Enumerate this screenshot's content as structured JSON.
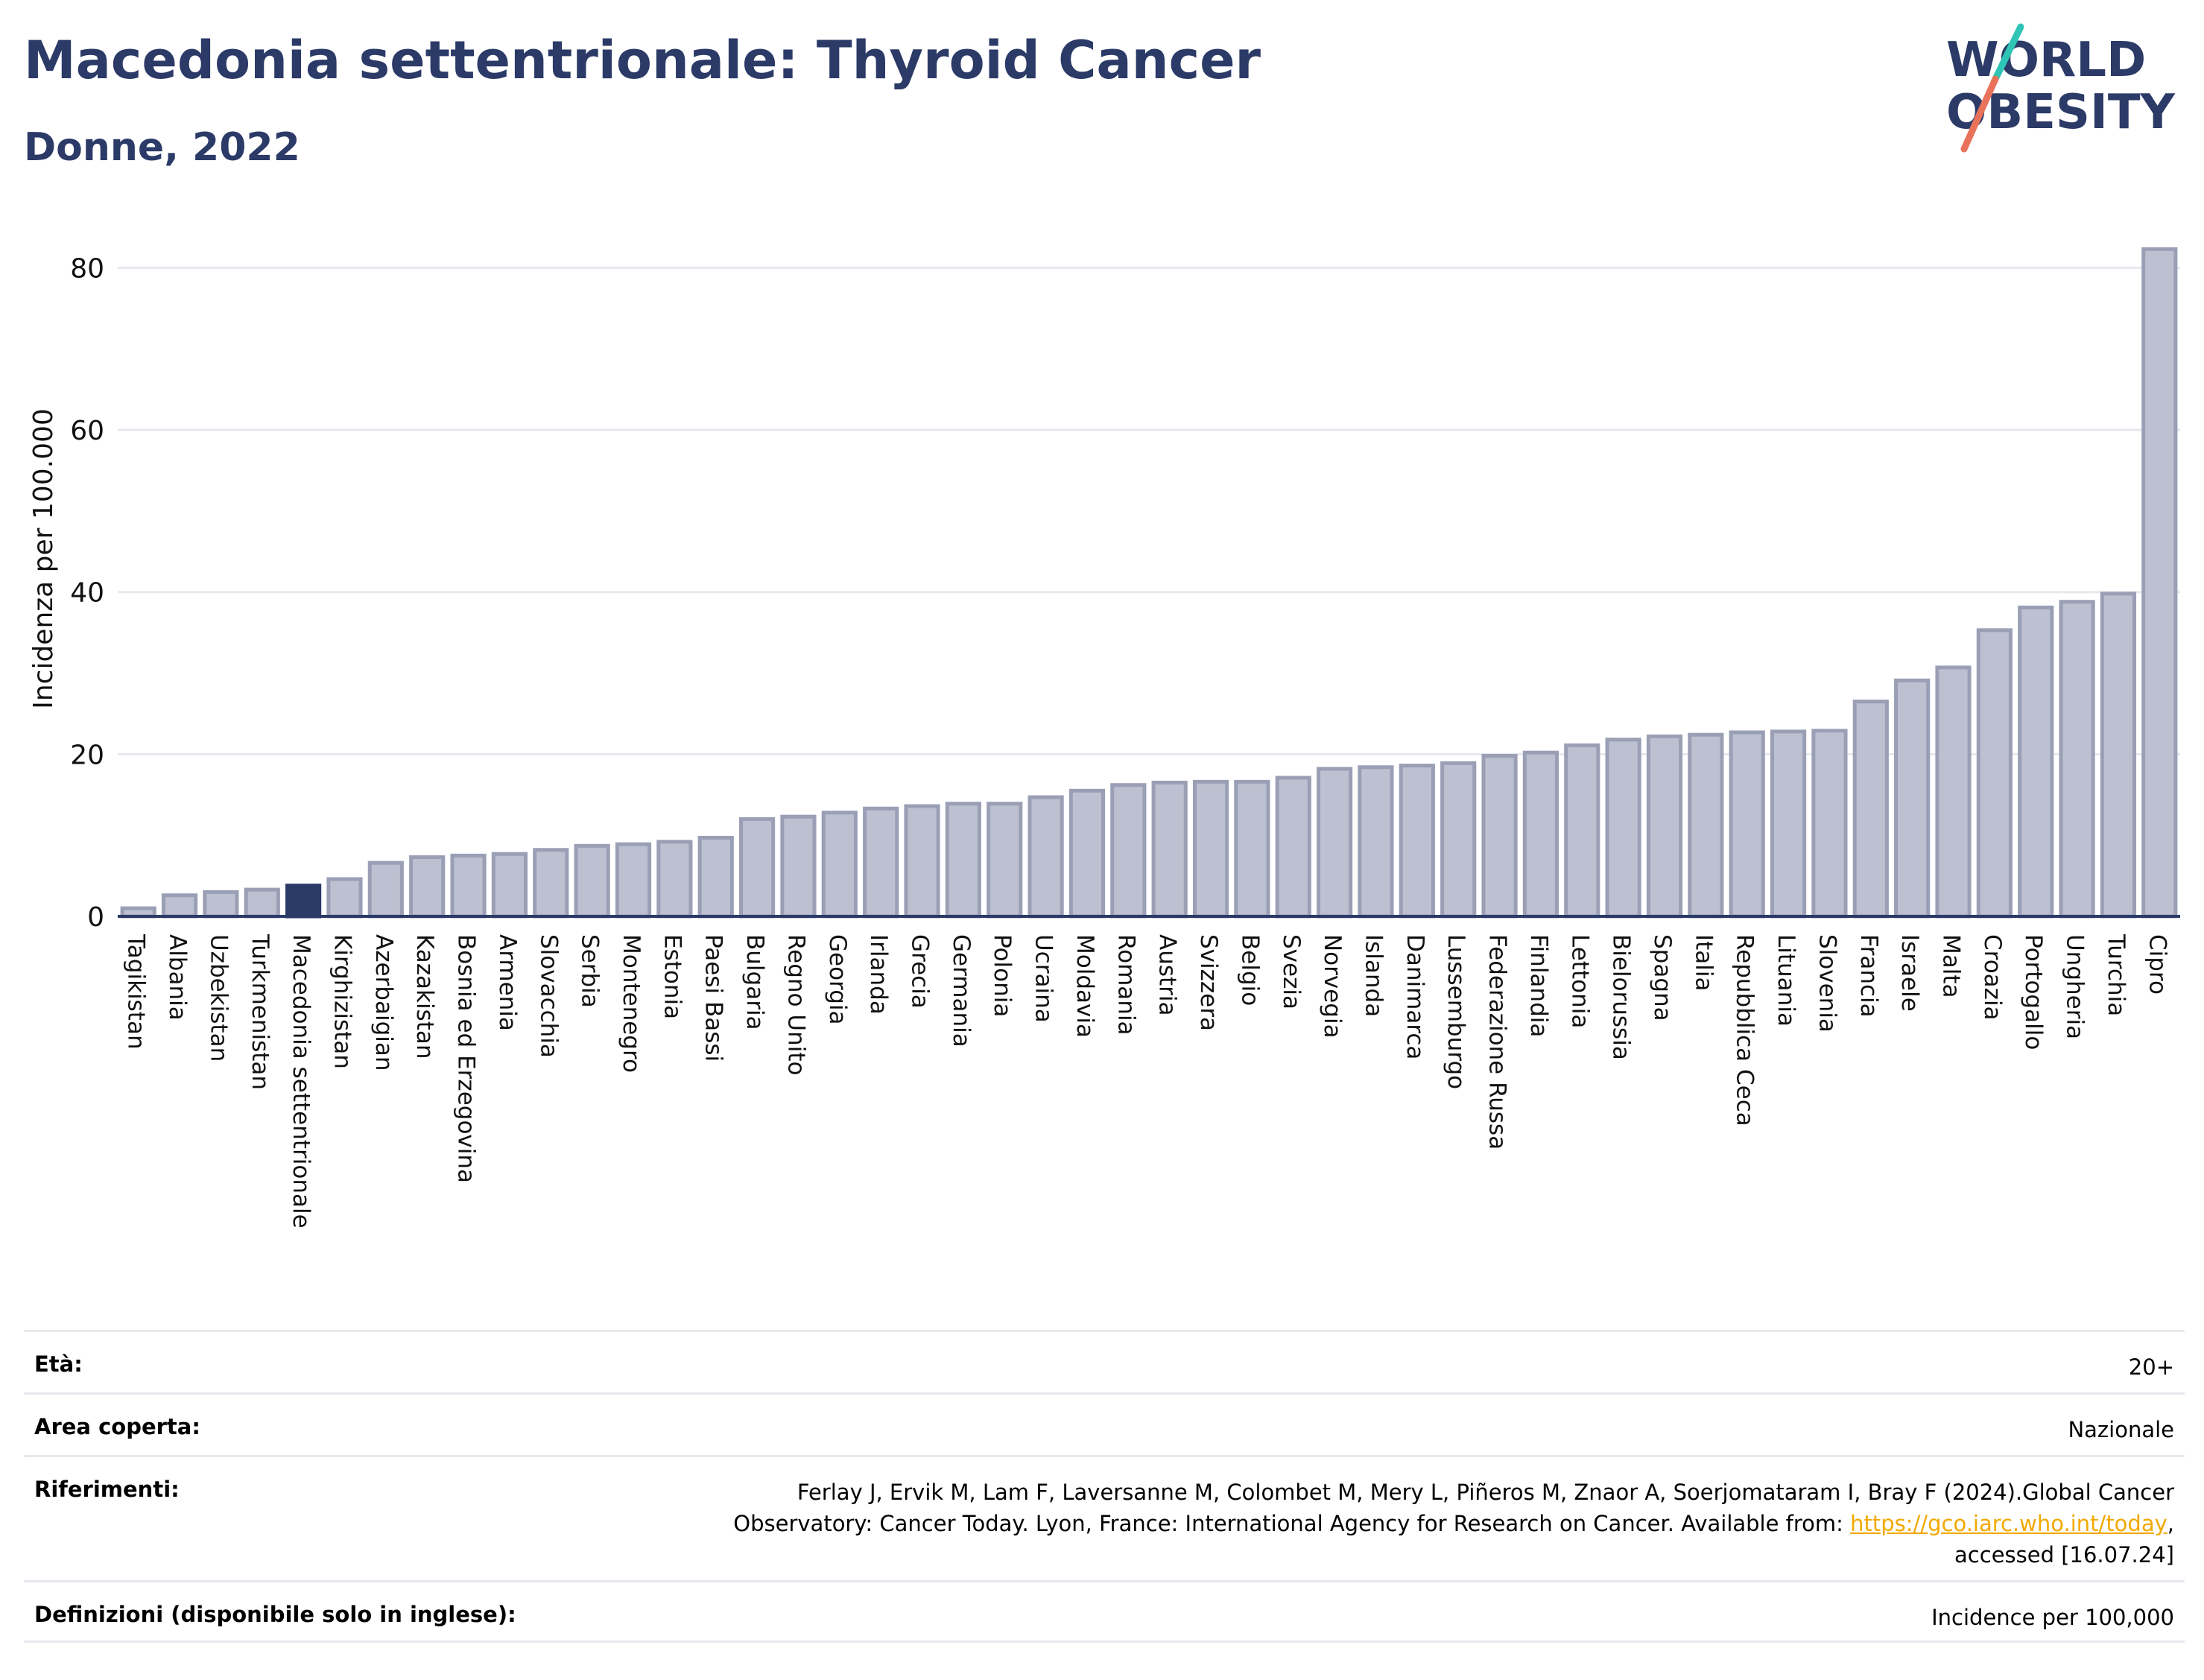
{
  "header": {
    "title": "Macedonia settentrionale: Thyroid Cancer",
    "subtitle": "Donne, 2022"
  },
  "logo": {
    "line1": "WORLD",
    "line2": "OBESITY"
  },
  "chart_data": {
    "type": "bar",
    "ylabel": "Incidenza per 100.000",
    "ylim": [
      0,
      85
    ],
    "yticks": [
      0,
      20,
      40,
      60,
      80
    ],
    "grid": true,
    "highlight": "Macedonia settentrionale",
    "colors": {
      "bar": "#bcc0d0",
      "bar_edge": "#9a9fb6",
      "highlight": "#2b3a67",
      "grid": "#e6e8ee",
      "axis": "#2b3a67"
    },
    "categories": [
      "Tagikistan",
      "Albania",
      "Uzbekistan",
      "Turkmenistan",
      "Macedonia settentrionale",
      "Kirghizistan",
      "Azerbaigian",
      "Kazakistan",
      "Bosnia ed Erzegovina",
      "Armenia",
      "Slovacchia",
      "Serbia",
      "Montenegro",
      "Estonia",
      "Paesi Bassi",
      "Bulgaria",
      "Regno Unito",
      "Georgia",
      "Irlanda",
      "Grecia",
      "Germania",
      "Polonia",
      "Ucraina",
      "Moldavia",
      "Romania",
      "Austria",
      "Svizzera",
      "Belgio",
      "Svezia",
      "Norvegia",
      "Islanda",
      "Danimarca",
      "Lussemburgo",
      "Federazione Russa",
      "Finlandia",
      "Lettonia",
      "Bielorussia",
      "Spagna",
      "Italia",
      "Repubblica Ceca",
      "Lituania",
      "Slovenia",
      "Francia",
      "Israele",
      "Malta",
      "Croazia",
      "Portogallo",
      "Ungheria",
      "Turchia",
      "Cipro"
    ],
    "values": [
      1.0,
      2.6,
      3.0,
      3.3,
      3.8,
      4.6,
      6.6,
      7.3,
      7.5,
      7.7,
      8.2,
      8.7,
      8.9,
      9.2,
      9.7,
      12.0,
      12.3,
      12.8,
      13.3,
      13.6,
      13.9,
      13.9,
      14.7,
      15.5,
      16.2,
      16.5,
      16.6,
      16.6,
      17.1,
      18.2,
      18.4,
      18.6,
      18.9,
      19.8,
      20.2,
      21.1,
      21.8,
      22.2,
      22.4,
      22.7,
      22.8,
      22.9,
      26.5,
      29.1,
      30.7,
      35.3,
      38.1,
      38.8,
      39.8,
      82.3
    ]
  },
  "info": {
    "age_label": "Età:",
    "age_value": "20+",
    "area_label": "Area coperta:",
    "area_value": "Nazionale",
    "refs_label": "Riferimenti:",
    "refs_line1": "Ferlay J, Ervik M, Lam F, Laversanne M, Colombet M, Mery L, Piñeros M, Znaor A, Soerjomataram I, Bray F (2024).Global Cancer",
    "refs_line2_pre": "Observatory: Cancer Today. Lyon, France: International Agency for Research on Cancer. Available from: ",
    "refs_link": "https://gco.iarc.who.int/today",
    "refs_line2_post": ",",
    "refs_line3": "accessed [16.07.24]",
    "defs_label": "Definizioni (disponibile solo in inglese):",
    "defs_value": "Incidence per 100,000"
  }
}
